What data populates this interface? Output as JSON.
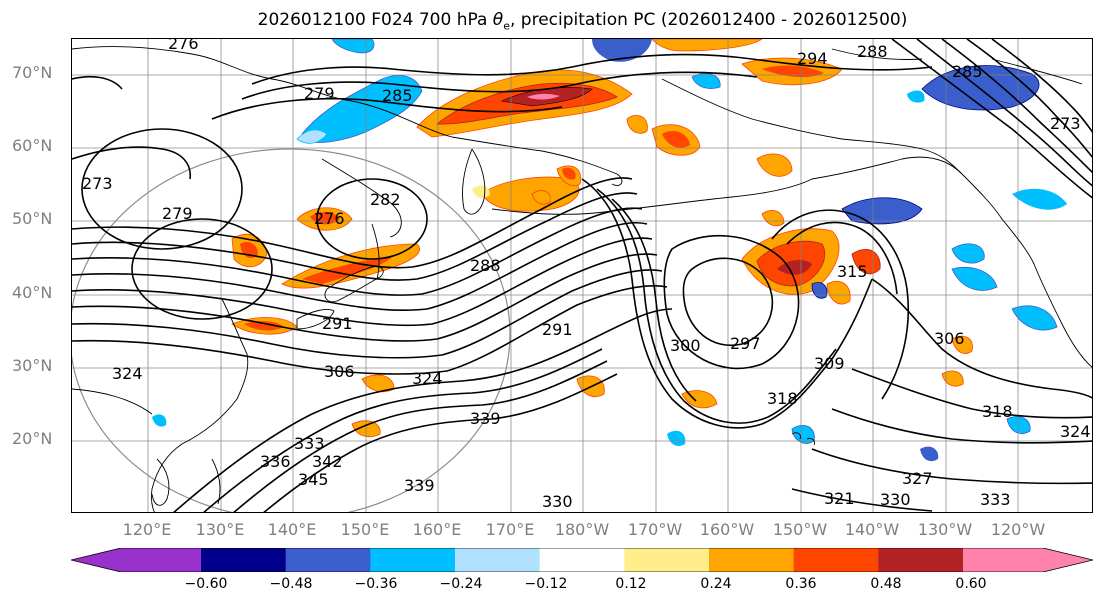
{
  "title": {
    "prefix": "2026012100 F024 700 hPa ",
    "theta_symbol": "θ",
    "theta_sub": "e",
    "suffix": ", precipitation PC (2026012400 - 2026012500)"
  },
  "map": {
    "latitude_labels": [
      "70°N",
      "60°N",
      "50°N",
      "40°N",
      "30°N",
      "20°N"
    ],
    "longitude_labels": [
      "120°E",
      "130°E",
      "140°E",
      "150°E",
      "160°E",
      "170°E",
      "180°W",
      "170°W",
      "160°W",
      "150°W",
      "140°W",
      "130°W",
      "120°W"
    ],
    "theta_e_contour_labels": [
      "279",
      "285",
      "288",
      "294",
      "282",
      "279",
      "273",
      "276",
      "288",
      "291",
      "306",
      "324",
      "300",
      "297",
      "309",
      "318",
      "315",
      "306",
      "318",
      "324",
      "327",
      "330",
      "333",
      "321",
      "336",
      "333",
      "342",
      "345",
      "339",
      "339",
      "330",
      "324",
      "273",
      "291",
      "285",
      "276"
    ],
    "colors": {
      "coast": "#000000",
      "grid": "#808080",
      "contour": "#000000"
    }
  },
  "colorbar": {
    "levels": [
      -0.72,
      -0.6,
      -0.48,
      -0.36,
      -0.24,
      -0.12,
      0.12,
      0.24,
      0.36,
      0.48,
      0.6,
      0.72
    ],
    "colors": [
      "#9932cc",
      "#00008b",
      "#3a5fcd",
      "#00bfff",
      "#b0e2ff",
      "#ffffff",
      "#ffec8b",
      "#ffa500",
      "#ff4500",
      "#b22222",
      "#ff82ab"
    ],
    "tick_labels": [
      "−0.60",
      "−0.48",
      "−0.36",
      "−0.24",
      "−0.12",
      "0.12",
      "0.24",
      "0.36",
      "0.48",
      "0.60"
    ]
  }
}
